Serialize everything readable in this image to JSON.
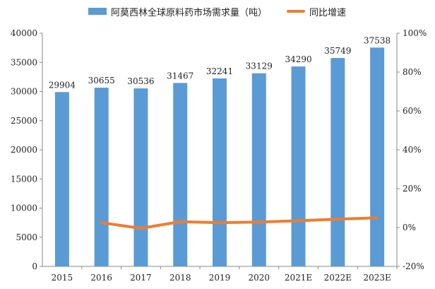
{
  "chart_data": {
    "type": "bar",
    "categories": [
      "2015",
      "2016",
      "2017",
      "2018",
      "2019",
      "2020",
      "2021E",
      "2022E",
      "2023E"
    ],
    "series": [
      {
        "name": "阿莫西林全球原料药市场需求量（吨）",
        "type": "bar",
        "axis": "left",
        "color": "#5b9bd5",
        "values": [
          29904,
          30655,
          30536,
          31467,
          32241,
          33129,
          34290,
          35749,
          37538
        ]
      },
      {
        "name": "同比增速",
        "type": "line",
        "axis": "right",
        "color": "#ed7d31",
        "values": [
          null,
          2.5,
          -0.4,
          3.0,
          2.5,
          2.8,
          3.5,
          4.3,
          5.0
        ]
      }
    ],
    "y_left": {
      "ylim": [
        0,
        40000
      ],
      "ticks": [
        0,
        5000,
        10000,
        15000,
        20000,
        25000,
        30000,
        35000,
        40000
      ]
    },
    "y_right": {
      "ylim": [
        -20,
        100
      ],
      "ticks": [
        -20,
        0,
        20,
        40,
        60,
        80,
        100
      ],
      "tick_labels": [
        "-20%",
        "0%",
        "20%",
        "40%",
        "60%",
        "80%",
        "100%"
      ]
    },
    "data_labels": [
      "29904",
      "30655",
      "30536",
      "31467",
      "32241",
      "33129",
      "34290",
      "35749",
      "37538"
    ],
    "legend_position": "top"
  }
}
